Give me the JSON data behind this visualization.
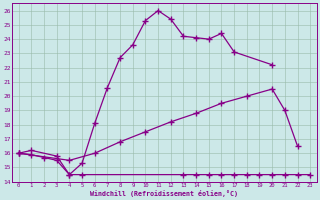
{
  "xlabel": "Windchill (Refroidissement éolien,°C)",
  "bg_color": "#cce8e8",
  "grid_color": "#aaccbb",
  "line_color": "#880088",
  "ylim": [
    14,
    26.5
  ],
  "xlim": [
    -0.5,
    23.5
  ],
  "yticks": [
    14,
    15,
    16,
    17,
    18,
    19,
    20,
    21,
    22,
    23,
    24,
    25,
    26
  ],
  "xticks": [
    0,
    1,
    2,
    3,
    4,
    5,
    6,
    7,
    8,
    9,
    10,
    11,
    12,
    13,
    14,
    15,
    16,
    17,
    18,
    19,
    20,
    21,
    22,
    23
  ],
  "line1_x": [
    0,
    1,
    3,
    4,
    5,
    6,
    7,
    8,
    9,
    10,
    11,
    12,
    13,
    14,
    15,
    16,
    17,
    20
  ],
  "line1_y": [
    16.0,
    16.2,
    15.8,
    14.5,
    15.3,
    18.1,
    20.6,
    22.7,
    23.6,
    25.3,
    26.0,
    25.4,
    24.2,
    24.1,
    24.0,
    24.4,
    23.1,
    22.2
  ],
  "line2_x": [
    0,
    4,
    6,
    8,
    10,
    12,
    14,
    16,
    18,
    20,
    21,
    22
  ],
  "line2_y": [
    16.0,
    15.5,
    16.0,
    16.8,
    17.5,
    18.2,
    18.8,
    19.5,
    20.0,
    20.5,
    19.0,
    16.5
  ],
  "line3_x": [
    0,
    1,
    2,
    3,
    4,
    5,
    13,
    14,
    15,
    16,
    17,
    18,
    19,
    20,
    21,
    22,
    23
  ],
  "line3_y": [
    16.0,
    15.9,
    15.7,
    15.5,
    14.5,
    14.5,
    14.5,
    14.5,
    14.5,
    14.5,
    14.5,
    14.5,
    14.5,
    14.5,
    14.5,
    14.5,
    14.5
  ]
}
